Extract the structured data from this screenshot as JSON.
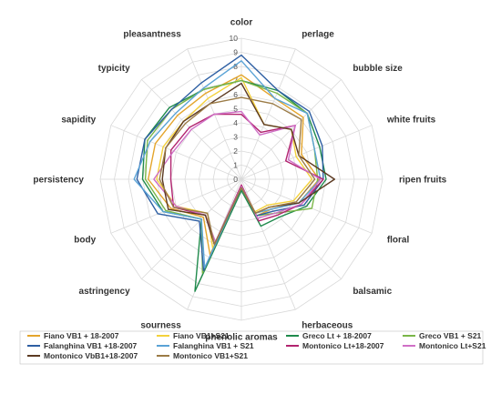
{
  "chart_data": {
    "type": "radar",
    "title": "",
    "axes": [
      "color",
      "perlage",
      "bubble size",
      "white fruits",
      "ripen fruits",
      "floral",
      "balsamic",
      "herbaceous",
      "phenolic aromas",
      "sourness",
      "astringency",
      "body",
      "persistency",
      "sapidity",
      "typicity",
      "pleasantness"
    ],
    "rlim": [
      0,
      10
    ],
    "ticks": [
      "0",
      "1",
      "2",
      "3",
      "4",
      "5",
      "6",
      "7",
      "8",
      "9",
      "10"
    ],
    "grid": true,
    "legend_position": "bottom",
    "series": [
      {
        "name": "Fiano VB1 + 18-2007",
        "color": "#e4a52c",
        "values": [
          7.4,
          6.2,
          6.2,
          4.6,
          5.5,
          4.4,
          3.0,
          2.8,
          0.6,
          5.8,
          3.8,
          5.4,
          6.6,
          6.6,
          6.4,
          6.6
        ]
      },
      {
        "name": "Fiano VB1+S21",
        "color": "#f4d13b",
        "values": [
          7.2,
          4.2,
          5.0,
          4.2,
          5.0,
          4.0,
          2.6,
          2.5,
          0.5,
          5.3,
          3.4,
          5.0,
          6.0,
          6.0,
          5.8,
          6.2
        ]
      },
      {
        "name": "Greco Lt + 18-2007",
        "color": "#1f8a4c",
        "values": [
          7.0,
          6.8,
          6.6,
          6.0,
          6.0,
          5.0,
          3.8,
          3.6,
          0.8,
          8.6,
          4.0,
          6.0,
          7.0,
          7.4,
          7.2,
          6.9
        ]
      },
      {
        "name": "Greco VB1 + S21",
        "color": "#7ab648",
        "values": [
          7.0,
          6.6,
          6.6,
          5.6,
          5.4,
          5.4,
          3.4,
          2.8,
          0.6,
          7.2,
          4.0,
          5.8,
          6.8,
          7.2,
          7.0,
          6.9
        ]
      },
      {
        "name": "Falanghina VB1 +18-2007",
        "color": "#2e5fa3",
        "values": [
          8.8,
          6.8,
          6.8,
          6.2,
          5.8,
          4.8,
          3.2,
          2.8,
          0.6,
          7.0,
          4.2,
          6.4,
          7.4,
          7.4,
          7.0,
          7.4
        ]
      },
      {
        "name": "Falanghina VB1 + S21",
        "color": "#5aa3d6",
        "values": [
          8.4,
          6.2,
          6.6,
          5.6,
          5.6,
          4.4,
          3.0,
          2.6,
          0.6,
          6.8,
          4.0,
          6.0,
          7.6,
          7.0,
          6.6,
          7.0
        ]
      },
      {
        "name": "Montonico Lt+18-2007",
        "color": "#b2246f",
        "values": [
          4.6,
          3.6,
          5.4,
          3.4,
          5.8,
          4.6,
          3.6,
          3.2,
          0.4,
          5.0,
          3.6,
          5.2,
          5.0,
          5.4,
          5.2,
          5.0
        ]
      },
      {
        "name": "Montonico Lt+S21",
        "color": "#cf6fc6",
        "values": [
          4.8,
          3.4,
          5.4,
          3.6,
          5.6,
          4.6,
          3.4,
          3.0,
          0.5,
          4.8,
          3.6,
          5.0,
          6.2,
          5.2,
          5.0,
          5.0
        ]
      },
      {
        "name": "Montonico VbB1+18-2007",
        "color": "#5c3a22",
        "values": [
          6.8,
          4.2,
          5.0,
          4.4,
          6.6,
          4.4,
          2.8,
          2.6,
          0.6,
          5.0,
          3.6,
          5.6,
          5.6,
          5.8,
          5.8,
          5.8
        ]
      },
      {
        "name": "Montonico VB1+S21",
        "color": "#9b7b46",
        "values": [
          5.8,
          5.8,
          6.0,
          4.4,
          5.2,
          4.2,
          2.8,
          2.6,
          0.6,
          5.0,
          3.4,
          5.2,
          5.8,
          5.8,
          5.6,
          5.8
        ]
      }
    ]
  }
}
